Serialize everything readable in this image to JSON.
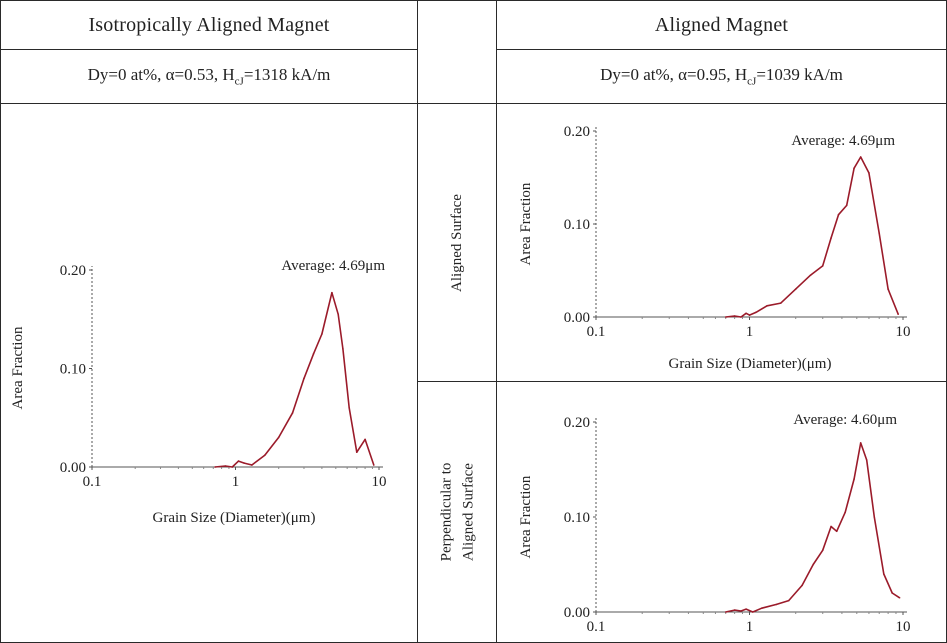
{
  "table": {
    "left_header": "Isotropically Aligned Magnet",
    "left_condition": {
      "pre": "Dy=0 at%, α=0.53, H",
      "sub": "cJ",
      "post": "=1318 kA/m"
    },
    "right_header": "Aligned Magnet",
    "right_condition": {
      "pre": "Dy=0 at%, α=0.95, H",
      "sub": "cJ",
      "post": "=1039 kA/m"
    },
    "row1_label": "Aligned Surface",
    "row2_label_line1": "Perpendicular to",
    "row2_label_line2": "Aligned Surface"
  },
  "colors": {
    "line": "#9b1b2a",
    "axis": "#555555",
    "border": "#2a2a2a"
  },
  "chart_data": [
    {
      "id": "isotropic",
      "type": "line",
      "xscale": "log",
      "xlim": [
        0.1,
        10
      ],
      "ylim": [
        0,
        0.2
      ],
      "xticks": [
        "0.1",
        "1",
        "10"
      ],
      "yticks": [
        "0.00",
        "0.10",
        "0.20"
      ],
      "xlabel": "Grain Size (Diameter)(μm)",
      "ylabel": "Area Fraction",
      "annotation": "Average: 4.69μm",
      "x": [
        0.72,
        0.85,
        0.95,
        1.05,
        1.15,
        1.3,
        1.6,
        2.0,
        2.5,
        3.0,
        3.5,
        4.0,
        4.7,
        5.2,
        5.6,
        6.2,
        7.0,
        8.0,
        9.2
      ],
      "y": [
        0.0,
        0.001,
        0.0,
        0.006,
        0.004,
        0.002,
        0.012,
        0.03,
        0.055,
        0.09,
        0.115,
        0.135,
        0.177,
        0.155,
        0.12,
        0.06,
        0.015,
        0.028,
        0.002
      ]
    },
    {
      "id": "aligned-surface",
      "type": "line",
      "xscale": "log",
      "xlim": [
        0.1,
        10
      ],
      "ylim": [
        0,
        0.2
      ],
      "xticks": [
        "0.1",
        "1",
        "10"
      ],
      "yticks": [
        "0.00",
        "0.10",
        "0.20"
      ],
      "xlabel": "Grain Size (Diameter)(μm)",
      "ylabel": "Area Fraction",
      "annotation": "Average: 4.69μm",
      "x": [
        0.7,
        0.8,
        0.88,
        0.95,
        1.0,
        1.1,
        1.3,
        1.6,
        2.0,
        2.5,
        3.0,
        3.4,
        3.8,
        4.3,
        4.8,
        5.3,
        6.0,
        7.0,
        8.0,
        9.3
      ],
      "y": [
        0.0,
        0.001,
        0.0,
        0.004,
        0.002,
        0.005,
        0.012,
        0.015,
        0.03,
        0.045,
        0.055,
        0.085,
        0.11,
        0.12,
        0.16,
        0.172,
        0.155,
        0.09,
        0.03,
        0.003
      ]
    },
    {
      "id": "perpendicular",
      "type": "line",
      "xscale": "log",
      "xlim": [
        0.1,
        10
      ],
      "ylim": [
        0,
        0.2
      ],
      "xticks": [
        "0.1",
        "1",
        "10"
      ],
      "yticks": [
        "0.00",
        "0.10",
        "0.20"
      ],
      "xlabel": "",
      "ylabel": "Area Fraction",
      "annotation": "Average: 4.60μm",
      "x": [
        0.7,
        0.8,
        0.88,
        0.95,
        1.05,
        1.2,
        1.5,
        1.8,
        2.2,
        2.6,
        3.0,
        3.4,
        3.7,
        4.2,
        4.8,
        5.3,
        5.8,
        6.5,
        7.5,
        8.5,
        9.5
      ],
      "y": [
        0.0,
        0.002,
        0.001,
        0.003,
        0.0,
        0.004,
        0.008,
        0.012,
        0.028,
        0.05,
        0.065,
        0.09,
        0.085,
        0.105,
        0.14,
        0.178,
        0.16,
        0.1,
        0.04,
        0.02,
        0.015
      ]
    }
  ]
}
